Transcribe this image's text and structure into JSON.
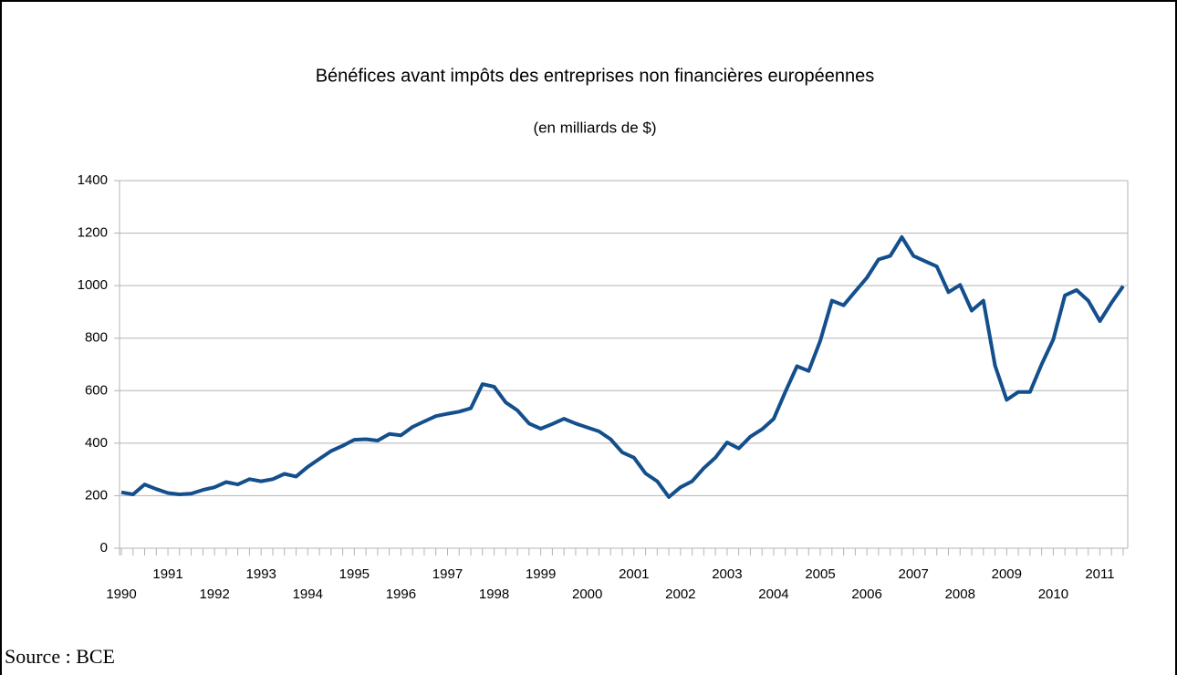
{
  "chart_data": {
    "type": "line",
    "title": "Bénéfices avant impôts des entreprises non financières européennes",
    "subtitle": "(en milliards de $)",
    "source": "Source : BCE",
    "categories": [
      "1990",
      null,
      null,
      null,
      "1991",
      null,
      null,
      null,
      "1992",
      null,
      null,
      null,
      "1993",
      null,
      null,
      null,
      "1994",
      null,
      null,
      null,
      "1995",
      null,
      null,
      null,
      "1996",
      null,
      null,
      null,
      "1997",
      null,
      null,
      null,
      "1998",
      null,
      null,
      null,
      "1999",
      null,
      null,
      null,
      "2000",
      null,
      null,
      null,
      "2001",
      null,
      null,
      null,
      "2002",
      null,
      null,
      null,
      "2003",
      null,
      null,
      null,
      "2004",
      null,
      null,
      null,
      "2005",
      null,
      null,
      null,
      "2006",
      null,
      null,
      null,
      "2007",
      null,
      null,
      null,
      "2008",
      null,
      null,
      null,
      "2009",
      null,
      null,
      null,
      "2010",
      null,
      null,
      null,
      "2011",
      null,
      null
    ],
    "values": [
      213,
      205,
      243,
      225,
      210,
      205,
      208,
      222,
      232,
      252,
      243,
      263,
      255,
      263,
      283,
      273,
      310,
      340,
      370,
      390,
      413,
      415,
      410,
      435,
      430,
      462,
      483,
      503,
      512,
      520,
      533,
      625,
      615,
      555,
      525,
      475,
      455,
      473,
      493,
      475,
      460,
      445,
      415,
      365,
      345,
      285,
      255,
      195,
      232,
      255,
      305,
      345,
      403,
      380,
      425,
      453,
      493,
      595,
      693,
      675,
      790,
      943,
      925,
      978,
      1030,
      1100,
      1113,
      1185,
      1113,
      1093,
      1073,
      975,
      1003,
      905,
      943,
      695,
      565,
      595,
      595,
      700,
      795,
      963,
      983,
      943,
      865,
      935,
      998
    ],
    "color": "#134f8c",
    "ylim": [
      0,
      1400
    ],
    "yticks": [
      0,
      200,
      400,
      600,
      800,
      1000,
      1200,
      1400
    ],
    "grid": true
  }
}
